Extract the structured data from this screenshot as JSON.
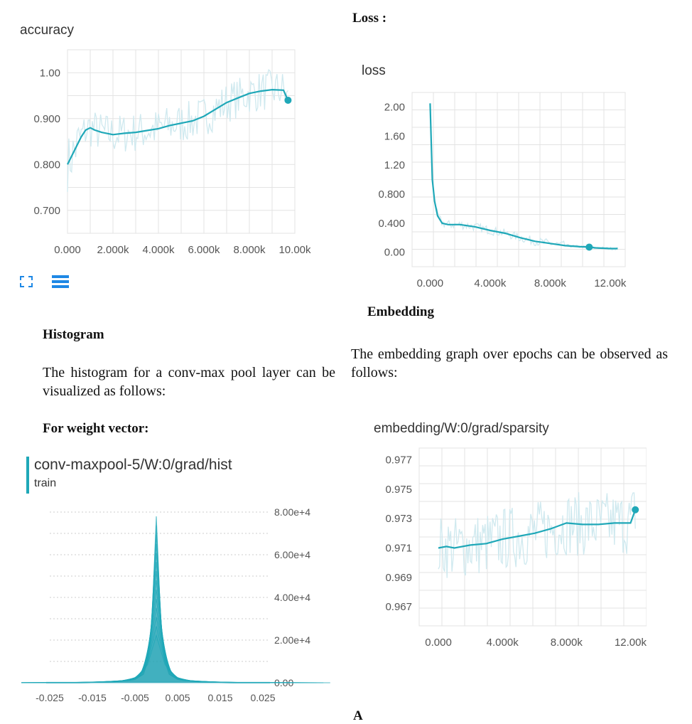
{
  "left": {
    "accuracy_title": "accuracy",
    "icons": [
      "expand-icon",
      "data-toggle-icon"
    ],
    "histogram_heading": "Histogram",
    "histogram_text_line1": "The histogram for a conv-max pool layer can be",
    "histogram_text_line2": "visualized as follows:",
    "weight_heading": "For weight vector:",
    "hist_title": "conv-maxpool-5/W:0/grad/hist",
    "hist_subtitle": "train"
  },
  "right": {
    "loss_heading": "Loss :",
    "loss_title": "loss",
    "embedding_heading": "Embedding",
    "embedding_text_line1": "The embedding graph over epochs can be observed as",
    "embedding_text_line2": "follows:",
    "sparsity_title": "embedding/W:0/grad/sparsity",
    "bottom_fragment": "A"
  },
  "colors": {
    "line": "#1fa8b8",
    "band": "#cfe9ef",
    "grid": "#e3e3e3",
    "axis": "#555555"
  },
  "chart_data": [
    {
      "type": "line",
      "title": "accuracy",
      "xticks": [
        "0.000",
        "2.000k",
        "4.000k",
        "6.000k",
        "8.000k",
        "10.00k"
      ],
      "xlim": [
        0,
        10000
      ],
      "yticks": [
        "1.00",
        "0.900",
        "0.800",
        "0.700"
      ],
      "ylim": [
        0.65,
        1.05
      ],
      "series": [
        {
          "x": [
            0,
            200,
            400,
            600,
            800,
            1000,
            1200,
            1500,
            2000,
            2500,
            3000,
            3500,
            4000,
            4500,
            5000,
            5500,
            6000,
            6500,
            7000,
            7500,
            8000,
            8500,
            9000,
            9500,
            9700
          ],
          "values": [
            0.8,
            0.82,
            0.84,
            0.86,
            0.875,
            0.88,
            0.875,
            0.87,
            0.865,
            0.868,
            0.87,
            0.874,
            0.878,
            0.885,
            0.89,
            0.895,
            0.905,
            0.92,
            0.935,
            0.945,
            0.955,
            0.96,
            0.963,
            0.962,
            0.94
          ]
        }
      ]
    },
    {
      "type": "line",
      "title": "loss",
      "xticks": [
        "0.000",
        "4.000k",
        "8.000k",
        "12.00k"
      ],
      "xlim": [
        -1200,
        13000
      ],
      "yticks": [
        "2.00",
        "1.60",
        "1.20",
        "0.800",
        "0.400",
        "0.00"
      ],
      "ylim": [
        -0.2,
        2.2
      ],
      "series": [
        {
          "x": [
            0,
            150,
            300,
            500,
            800,
            1200,
            2000,
            3000,
            4000,
            5000,
            6000,
            7000,
            8000,
            9000,
            10000,
            10600,
            11000,
            12000,
            12500
          ],
          "values": [
            2.05,
            1.0,
            0.7,
            0.5,
            0.4,
            0.38,
            0.38,
            0.35,
            0.3,
            0.26,
            0.2,
            0.15,
            0.12,
            0.09,
            0.075,
            0.07,
            0.06,
            0.05,
            0.05
          ]
        }
      ]
    },
    {
      "type": "line",
      "title": "embedding/W:0/grad/sparsity",
      "xticks": [
        "0.000",
        "4.000k",
        "8.000k",
        "12.00k"
      ],
      "xlim": [
        -1200,
        13000
      ],
      "yticks": [
        "0.977",
        "0.975",
        "0.973",
        "0.971",
        "0.969",
        "0.967"
      ],
      "ylim": [
        0.9657,
        0.9778
      ],
      "series": [
        {
          "x": [
            0,
            500,
            1000,
            2000,
            3000,
            4000,
            5000,
            6000,
            7000,
            8000,
            9000,
            10000,
            11000,
            12000,
            12300
          ],
          "values": [
            0.971,
            0.9711,
            0.971,
            0.9712,
            0.9713,
            0.9716,
            0.9718,
            0.972,
            0.9723,
            0.9727,
            0.9726,
            0.9726,
            0.9727,
            0.9727,
            0.9736
          ]
        }
      ]
    },
    {
      "type": "area",
      "title": "conv-maxpool-5/W:0/grad/hist",
      "xticks": [
        "-0.025",
        "-0.015",
        "-0.005",
        "0.005",
        "0.015",
        "0.025"
      ],
      "xlim": [
        -0.025,
        0.025
      ],
      "yticks": [
        "8.00e+4",
        "6.00e+4",
        "4.00e+4",
        "2.00e+4",
        "0.00"
      ],
      "ylim": [
        0,
        80000
      ],
      "series": [
        {
          "name": "train",
          "x": [
            -0.02,
            -0.01,
            -0.005,
            -0.003,
            -0.002,
            -0.001,
            0,
            0.001,
            0.002,
            0.003,
            0.005,
            0.01,
            0.02
          ],
          "values": [
            0,
            300,
            1500,
            4000,
            10000,
            30000,
            78000,
            30000,
            10000,
            4000,
            1500,
            300,
            0
          ]
        }
      ]
    }
  ]
}
